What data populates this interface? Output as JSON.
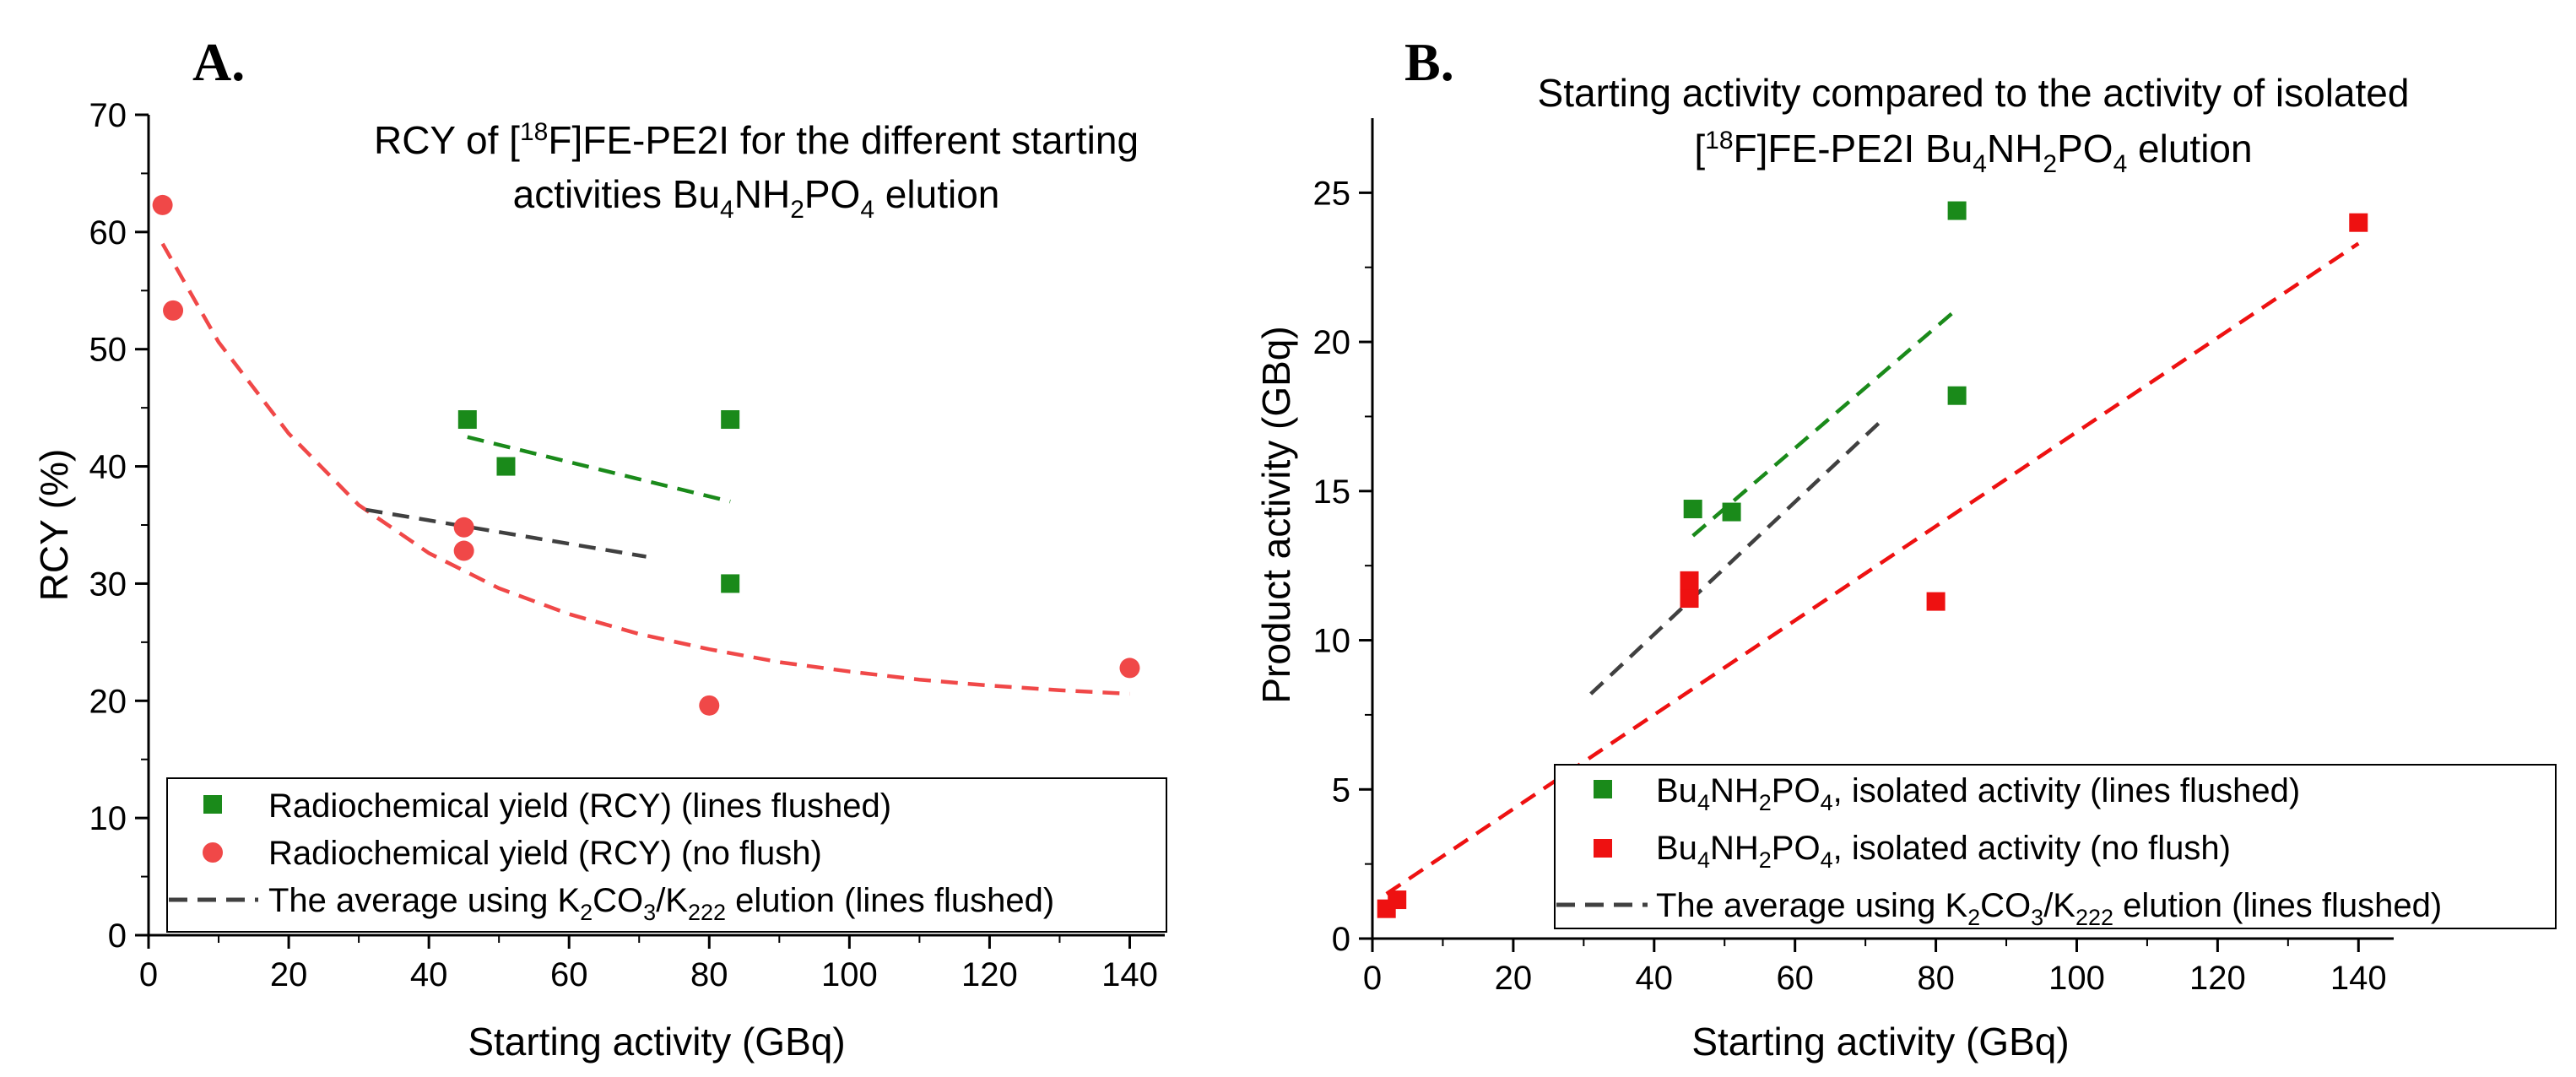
{
  "panels": {
    "a": {
      "letter": "A.",
      "title_line1_pre": "RCY of [",
      "title_line1_sup": "18",
      "title_line1_post": "F]FE-PE2I for the different starting",
      "title_line2_pre": "activities Bu",
      "title_line2_sub1": "4",
      "title_line2_mid1": "NH",
      "title_line2_sub2": "2",
      "title_line2_mid2": "PO",
      "title_line2_sub3": "4",
      "title_line2_post": " elution",
      "xlabel": "Starting activity (GBq)",
      "ylabel": "RCY (%)",
      "legend": {
        "item1": "Radiochemical yield (RCY) (lines flushed)",
        "item2": "Radiochemical yield (RCY) (no flush)",
        "item3_pre": "The average using K",
        "item3_sub1": "2",
        "item3_mid1": "CO",
        "item3_sub2": "3",
        "item3_mid2": "/K",
        "item3_sub3": "222",
        "item3_post": " elution (lines flushed)"
      }
    },
    "b": {
      "letter": "B.",
      "title_line1": "Starting activity compared to the activity of isolated",
      "title_line2_pre": "[",
      "title_line2_sup": "18",
      "title_line2_mid0": "F]FE-PE2I Bu",
      "title_line2_sub1": "4",
      "title_line2_mid1": "NH",
      "title_line2_sub2": "2",
      "title_line2_mid2": "PO",
      "title_line2_sub3": "4",
      "title_line2_post": " elution",
      "xlabel": "Starting activity (GBq)",
      "ylabel": "Product activity (GBq)",
      "legend": {
        "item1_pre": "Bu",
        "item1_sub1": "4",
        "item1_mid1": "NH",
        "item1_sub2": "2",
        "item1_mid2": "PO",
        "item1_sub3": "4",
        "item1_post": ", isolated activity (lines flushed)",
        "item2_pre": "Bu",
        "item2_sub1": "4",
        "item2_mid1": "NH",
        "item2_sub2": "2",
        "item2_mid2": "PO",
        "item2_sub3": "4",
        "item2_post": ", isolated activity (no flush)",
        "item3_pre": "The average using K",
        "item3_sub1": "2",
        "item3_mid1": "CO",
        "item3_sub2": "3",
        "item3_mid2": "/K",
        "item3_sub3": "222",
        "item3_post": " elution (lines flushed)"
      }
    }
  },
  "chart_data": [
    {
      "type": "scatter",
      "title": "RCY of [18F]FE-PE2I for the different starting activities Bu4NH2PO4 elution",
      "xlabel": "Starting activity (GBq)",
      "ylabel": "RCY (%)",
      "xlim": [
        0,
        145
      ],
      "ylim": [
        0,
        70
      ],
      "xticks": [
        0,
        20,
        40,
        60,
        80,
        100,
        120,
        140
      ],
      "yticks": [
        0,
        10,
        20,
        30,
        40,
        50,
        60,
        70
      ],
      "legend_position": "bottom-center",
      "series": [
        {
          "name": "Radiochemical yield (RCY) (lines flushed)",
          "marker": "square",
          "color": "#1a8a1a",
          "x": [
            45.5,
            51,
            83,
            83
          ],
          "y": [
            44,
            40,
            44,
            30
          ]
        },
        {
          "name": "Radiochemical yield (RCY) (no flush)",
          "marker": "circle",
          "color": "#f04848",
          "x": [
            2,
            3.5,
            45,
            45,
            80,
            140
          ],
          "y": [
            62.3,
            53.3,
            34.8,
            32.8,
            19.6,
            22.8
          ]
        },
        {
          "name": "The average using K2CO3/K222 elution (lines flushed)",
          "marker": "dashed-line",
          "color": "#404040",
          "x": [
            31,
            71
          ],
          "y": [
            36.3,
            32.3
          ]
        }
      ],
      "trendlines": [
        {
          "of": "Radiochemical yield (RCY) (lines flushed)",
          "kind": "linear",
          "color": "#1a8a1a",
          "x": [
            45.5,
            83
          ],
          "y": [
            42.5,
            37
          ]
        },
        {
          "of": "Radiochemical yield (RCY) (no flush)",
          "kind": "exponential",
          "color": "#f04848",
          "x": [
            2,
            10,
            20,
            30,
            40,
            50,
            60,
            70,
            80,
            90,
            100,
            110,
            120,
            130,
            140
          ],
          "y": [
            59.0,
            50.6,
            42.8,
            36.7,
            32.6,
            29.6,
            27.4,
            25.7,
            24.4,
            23.3,
            22.5,
            21.8,
            21.3,
            20.9,
            20.6
          ]
        }
      ]
    },
    {
      "type": "scatter",
      "title": "Starting activity compared to the activity of isolated [18F]FE-PE2I Bu4NH2PO4 elution",
      "xlabel": "Starting activity (GBq)",
      "ylabel": "Product activity (GBq)",
      "xlim": [
        0,
        145
      ],
      "ylim": [
        0,
        27.5
      ],
      "xticks": [
        0,
        20,
        40,
        60,
        80,
        100,
        120,
        140
      ],
      "yticks": [
        0,
        5,
        10,
        15,
        20,
        25
      ],
      "legend_position": "bottom-right",
      "series": [
        {
          "name": "Bu4NH2PO4, isolated activity (lines flushed)",
          "marker": "square",
          "color": "#1a8a1a",
          "x": [
            45.5,
            51,
            83,
            83
          ],
          "y": [
            14.4,
            14.3,
            24.4,
            18.2
          ]
        },
        {
          "name": "Bu4NH2PO4, isolated activity (no flush)",
          "marker": "square",
          "color": "#ee1111",
          "x": [
            2,
            3.5,
            45,
            45,
            80,
            140
          ],
          "y": [
            1.0,
            1.3,
            12.0,
            11.4,
            11.3,
            24.0
          ]
        },
        {
          "name": "The average using K2CO3/K222 elution (lines flushed)",
          "marker": "dashed-line",
          "color": "#404040",
          "x": [
            31,
            72
          ],
          "y": [
            8.2,
            17.3
          ]
        }
      ],
      "trendlines": [
        {
          "of": "Bu4NH2PO4, isolated activity (lines flushed)",
          "kind": "linear",
          "color": "#1a8a1a",
          "x": [
            45.5,
            83
          ],
          "y": [
            13.5,
            21.1
          ]
        },
        {
          "of": "Bu4NH2PO4, isolated activity (no flush)",
          "kind": "linear",
          "color": "#ee1111",
          "x": [
            2,
            140
          ],
          "y": [
            1.5,
            23.3
          ]
        }
      ]
    }
  ]
}
